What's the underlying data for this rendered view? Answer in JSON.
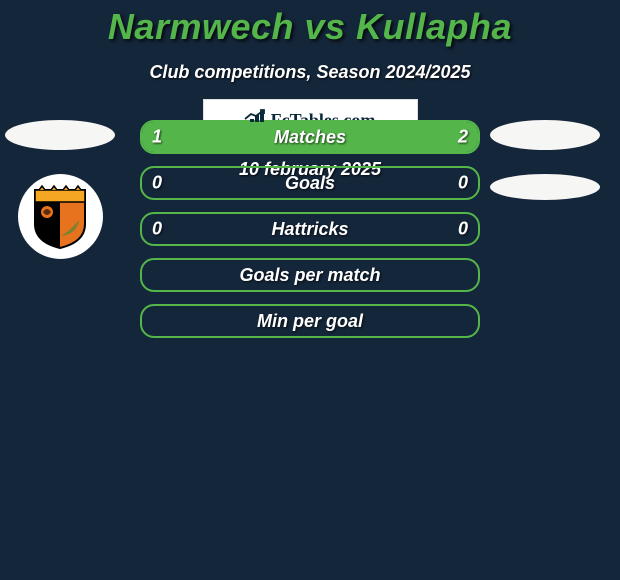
{
  "title": "Narmwech vs Kullapha",
  "subtitle": "Club competitions, Season 2024/2025",
  "date": "10 february 2025",
  "site_brand": "FcTables.com",
  "colors": {
    "background": "#14263a",
    "accent": "#54b64a",
    "text": "#ffffff",
    "badge_bg": "#ffffff",
    "shield_border": "#000000",
    "shield_top": "#f5a623",
    "shield_left": "#000000",
    "shield_right": "#e8731f"
  },
  "rows": [
    {
      "label": "Matches",
      "left": "1",
      "right": "2",
      "fill_left_pct": 33,
      "fill_right_pct": 67
    },
    {
      "label": "Goals",
      "left": "0",
      "right": "0",
      "fill_left_pct": 0,
      "fill_right_pct": 0
    },
    {
      "label": "Hattricks",
      "left": "0",
      "right": "0",
      "fill_left_pct": 0,
      "fill_right_pct": 0
    },
    {
      "label": "Goals per match",
      "left": "",
      "right": "",
      "fill_left_pct": 0,
      "fill_right_pct": 0
    },
    {
      "label": "Min per goal",
      "left": "",
      "right": "",
      "fill_left_pct": 0,
      "fill_right_pct": 0
    }
  ],
  "typography": {
    "title_fontsize": 36,
    "subtitle_fontsize": 18,
    "row_label_fontsize": 18,
    "date_fontsize": 18
  }
}
